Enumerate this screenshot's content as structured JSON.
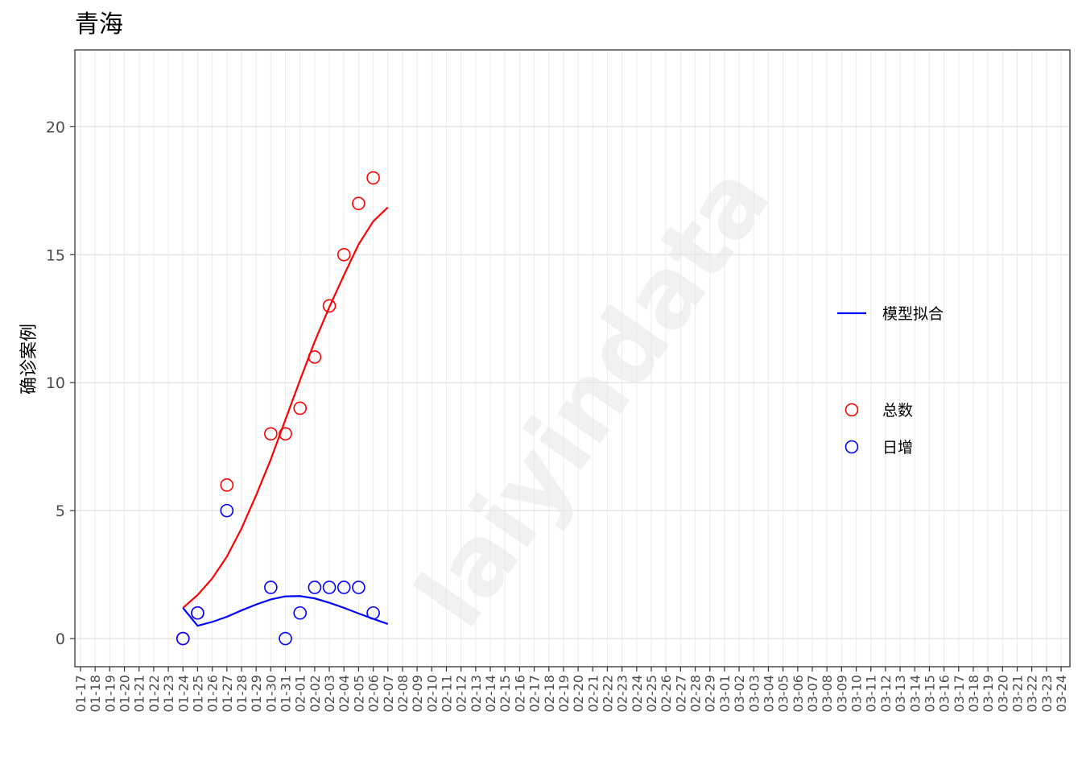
{
  "chart_data": {
    "type": "scatter",
    "title": "青海",
    "xlabel": "",
    "ylabel": "确诊案例",
    "ylim": [
      -1.1,
      23
    ],
    "yticks": [
      0,
      5,
      10,
      15,
      20
    ],
    "grid": true,
    "legend_position": "right",
    "watermark": "laiyindata",
    "categories": [
      "01-17",
      "01-18",
      "01-19",
      "01-20",
      "01-21",
      "01-22",
      "01-23",
      "01-24",
      "01-25",
      "01-26",
      "01-27",
      "01-28",
      "01-29",
      "01-30",
      "01-31",
      "02-01",
      "02-02",
      "02-03",
      "02-04",
      "02-05",
      "02-06",
      "02-07",
      "02-08",
      "02-09",
      "02-10",
      "02-11",
      "02-12",
      "02-13",
      "02-14",
      "02-15",
      "02-16",
      "02-17",
      "02-18",
      "02-19",
      "02-20",
      "02-21",
      "02-22",
      "02-23",
      "02-24",
      "02-25",
      "02-26",
      "02-27",
      "02-28",
      "02-29",
      "03-01",
      "03-02",
      "03-03",
      "03-04",
      "03-05",
      "03-06",
      "03-07",
      "03-08",
      "03-09",
      "03-10",
      "03-11",
      "03-12",
      "03-13",
      "03-14",
      "03-15",
      "03-16",
      "03-17",
      "03-18",
      "03-19",
      "03-20",
      "03-21",
      "03-22",
      "03-23",
      "03-24"
    ],
    "series": [
      {
        "name": "总数",
        "kind": "points",
        "color": "#ff0000",
        "x": [
          "01-24",
          "01-25",
          "01-27",
          "01-30",
          "01-31",
          "02-01",
          "02-02",
          "02-03",
          "02-04",
          "02-05",
          "02-06"
        ],
        "values": [
          0,
          1,
          6,
          8,
          8,
          9,
          11,
          13,
          15,
          17,
          18
        ]
      },
      {
        "name": "日增",
        "kind": "points",
        "color": "#0000ff",
        "x": [
          "01-24",
          "01-25",
          "01-27",
          "01-30",
          "01-31",
          "02-01",
          "02-02",
          "02-03",
          "02-04",
          "02-05",
          "02-06"
        ],
        "values": [
          0,
          1,
          5,
          2,
          0,
          1,
          2,
          2,
          2,
          2,
          1
        ]
      },
      {
        "name": "",
        "kind": "line",
        "color": "#ff0000",
        "x": [
          "01-24",
          "01-25",
          "01-26",
          "01-27",
          "01-28",
          "01-29",
          "01-30",
          "01-31",
          "02-01",
          "02-02",
          "02-03",
          "02-04",
          "02-05",
          "02-06",
          "02-07"
        ],
        "values": [
          1.2,
          1.7,
          2.35,
          3.2,
          4.3,
          5.6,
          7.0,
          8.55,
          10.1,
          11.6,
          12.95,
          14.2,
          15.4,
          16.3,
          16.85
        ]
      },
      {
        "name": "模型拟合",
        "kind": "line",
        "color": "#0000ff",
        "x": [
          "01-24",
          "01-25",
          "01-26",
          "01-27",
          "01-28",
          "01-29",
          "01-30",
          "01-31",
          "02-01",
          "02-02",
          "02-03",
          "02-04",
          "02-05",
          "02-06",
          "02-07"
        ],
        "values": [
          1.2,
          0.5,
          0.65,
          0.85,
          1.1,
          1.33,
          1.53,
          1.65,
          1.66,
          1.57,
          1.4,
          1.2,
          0.98,
          0.77,
          0.57
        ]
      }
    ],
    "legend": {
      "lines": [
        {
          "label": "模型拟合",
          "color": "#0000ff"
        }
      ],
      "points": [
        {
          "label": "总数",
          "color": "#ff0000"
        },
        {
          "label": "日增",
          "color": "#0000ff"
        }
      ]
    }
  }
}
